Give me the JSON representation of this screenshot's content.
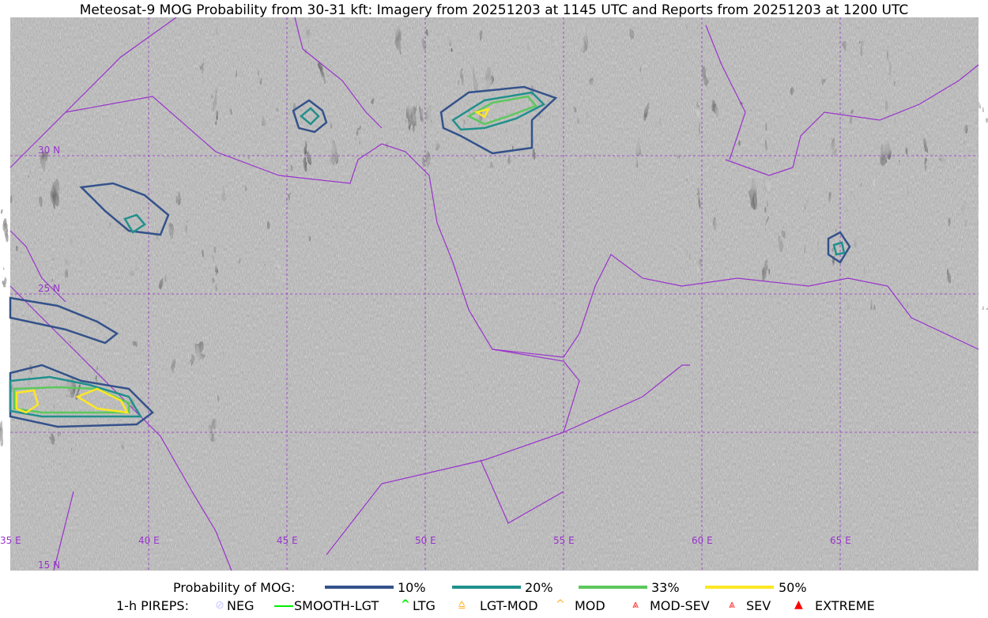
{
  "title": "Meteosat-9 MOG Probability from 30-31 kft: Imagery from 20251203 at 1145 UTC and Reports from 20251203 at 1200 UTC",
  "map": {
    "lon_labels": [
      "35 E",
      "40 E",
      "45 E",
      "50 E",
      "55 E",
      "60 E",
      "65 E"
    ],
    "lat_labels": [
      "30 N",
      "25 N",
      "15 N"
    ],
    "grid_color": "#9933cc",
    "border_color": "#9933cc"
  },
  "legend": {
    "probability_label": "Probability of MOG:",
    "probability_levels": [
      {
        "label": "10%",
        "color": "#34528a"
      },
      {
        "label": "20%",
        "color": "#21908c"
      },
      {
        "label": "33%",
        "color": "#5cc85c"
      },
      {
        "label": "50%",
        "color": "#fde725"
      }
    ],
    "pireps_label": "1-h PIREPS:",
    "pireps": [
      {
        "label": "NEG",
        "color": "#c8c8ff",
        "icon": "neg-icon"
      },
      {
        "label": "SMOOTH-LGT",
        "color": "#00ee00",
        "icon": "smooth-lgt-icon"
      },
      {
        "label": "LTG",
        "color": "#00ee00",
        "icon": "ltg-icon"
      },
      {
        "label": "LGT-MOD",
        "color": "#ffb020",
        "icon": "lgt-mod-icon"
      },
      {
        "label": "MOD",
        "color": "#ffb020",
        "icon": "mod-icon"
      },
      {
        "label": "MOD-SEV",
        "color": "#ff2020",
        "icon": "mod-sev-icon"
      },
      {
        "label": "SEV",
        "color": "#ff2020",
        "icon": "sev-icon"
      },
      {
        "label": "EXTREME",
        "color": "#ff0000",
        "icon": "extreme-icon"
      }
    ]
  }
}
